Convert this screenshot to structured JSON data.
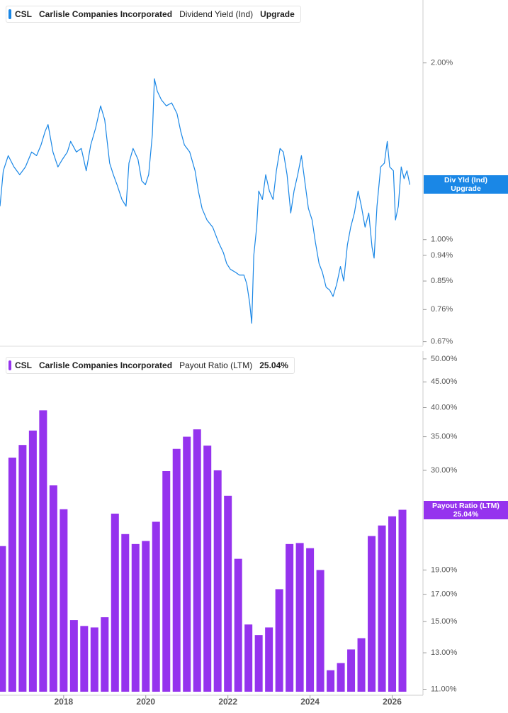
{
  "chart_data": [
    {
      "type": "line",
      "ticker": "CSL",
      "company": "Carlisle Companies Incorporated",
      "value_text": "Upgrade",
      "tag_name": "Div Yld (Ind)",
      "log_scale": true,
      "xlim": [
        2016.45,
        2026.75
      ],
      "ylim": [
        0.66,
        2.56
      ],
      "yticks": [
        {
          "value": 2,
          "label": "2.00%"
        },
        {
          "value": 1,
          "label": "1.00%"
        },
        {
          "value": 0.94,
          "label": "0.94%"
        },
        {
          "value": 0.85,
          "label": "0.85%"
        },
        {
          "value": 0.76,
          "label": "0.76%"
        },
        {
          "value": 0.67,
          "label": "0.67%"
        }
      ],
      "series": [
        {
          "name": "Dividend Yield (Ind)",
          "color": "#1a87e6",
          "x": [
            2016.45,
            2016.53,
            2016.65,
            2016.79,
            2016.93,
            2017.07,
            2017.22,
            2017.34,
            2017.45,
            2017.55,
            2017.62,
            2017.74,
            2017.86,
            2017.97,
            2018.09,
            2018.17,
            2018.31,
            2018.43,
            2018.55,
            2018.66,
            2018.78,
            2018.9,
            2019.0,
            2019.12,
            2019.21,
            2019.3,
            2019.42,
            2019.52,
            2019.59,
            2019.69,
            2019.81,
            2019.9,
            2019.99,
            2020.07,
            2020.16,
            2020.21,
            2020.28,
            2020.38,
            2020.5,
            2020.63,
            2020.76,
            2020.85,
            2020.94,
            2021.07,
            2021.2,
            2021.28,
            2021.37,
            2021.49,
            2021.63,
            2021.77,
            2021.89,
            2021.97,
            2022.06,
            2022.18,
            2022.28,
            2022.39,
            2022.46,
            2022.53,
            2022.58,
            2022.63,
            2022.7,
            2022.75,
            2022.84,
            2022.92,
            2023.01,
            2023.1,
            2023.18,
            2023.27,
            2023.35,
            2023.44,
            2023.53,
            2023.61,
            2023.7,
            2023.79,
            2023.87,
            2023.96,
            2024.05,
            2024.13,
            2024.22,
            2024.3,
            2024.39,
            2024.48,
            2024.56,
            2024.65,
            2024.74,
            2024.82,
            2024.91,
            2024.99,
            2025.08,
            2025.17,
            2025.25,
            2025.34,
            2025.43,
            2025.51,
            2025.56,
            2025.63,
            2025.72,
            2025.81,
            2025.88,
            2025.94,
            2026.03,
            2026.08,
            2026.15,
            2026.22,
            2026.29,
            2026.36,
            2026.43
          ],
          "values": [
            1.14,
            1.31,
            1.39,
            1.33,
            1.29,
            1.33,
            1.41,
            1.39,
            1.45,
            1.53,
            1.57,
            1.41,
            1.33,
            1.37,
            1.41,
            1.47,
            1.41,
            1.43,
            1.31,
            1.45,
            1.55,
            1.69,
            1.6,
            1.35,
            1.29,
            1.24,
            1.17,
            1.14,
            1.35,
            1.43,
            1.37,
            1.26,
            1.24,
            1.29,
            1.51,
            1.88,
            1.79,
            1.73,
            1.69,
            1.71,
            1.64,
            1.53,
            1.45,
            1.41,
            1.31,
            1.21,
            1.13,
            1.08,
            1.05,
            0.99,
            0.95,
            0.91,
            0.89,
            0.88,
            0.87,
            0.87,
            0.84,
            0.78,
            0.72,
            0.94,
            1.05,
            1.21,
            1.17,
            1.29,
            1.21,
            1.17,
            1.31,
            1.43,
            1.41,
            1.29,
            1.11,
            1.21,
            1.29,
            1.39,
            1.26,
            1.13,
            1.08,
            0.99,
            0.91,
            0.88,
            0.83,
            0.82,
            0.8,
            0.84,
            0.9,
            0.85,
            0.98,
            1.05,
            1.11,
            1.21,
            1.14,
            1.05,
            1.11,
            0.97,
            0.93,
            1.14,
            1.33,
            1.35,
            1.47,
            1.33,
            1.31,
            1.08,
            1.14,
            1.33,
            1.27,
            1.31,
            1.24
          ]
        }
      ]
    },
    {
      "type": "bar",
      "ticker": "CSL",
      "company": "Carlisle Companies Incorporated",
      "value_text": "25.04%",
      "tag_name": "Payout Ratio (LTM)",
      "log_scale": true,
      "xlim": [
        2016.45,
        2026.75
      ],
      "ylim": [
        10.7,
        51.8
      ],
      "bar_width": 0.19,
      "xticks": [
        2018,
        2020,
        2022,
        2024,
        2026
      ],
      "yticks": [
        {
          "value": 50,
          "label": "50.00%"
        },
        {
          "value": 45,
          "label": "45.00%"
        },
        {
          "value": 40,
          "label": "40.00%"
        },
        {
          "value": 35,
          "label": "35.00%"
        },
        {
          "value": 30,
          "label": "30.00%"
        },
        {
          "value": 19,
          "label": "19.00%"
        },
        {
          "value": 17,
          "label": "17.00%"
        },
        {
          "value": 15,
          "label": "15.00%"
        },
        {
          "value": 13,
          "label": "13.00%"
        },
        {
          "value": 11,
          "label": "11.00%"
        }
      ],
      "series": [
        {
          "name": "Payout Ratio (LTM)",
          "color": "#9533ee",
          "x": [
            2016.5,
            2016.75,
            2017,
            2017.25,
            2017.5,
            2017.75,
            2018,
            2018.25,
            2018.5,
            2018.75,
            2019,
            2019.25,
            2019.5,
            2019.75,
            2020,
            2020.25,
            2020.5,
            2020.75,
            2021,
            2021.25,
            2021.5,
            2021.75,
            2022,
            2022.25,
            2022.5,
            2022.75,
            2023,
            2023.25,
            2023.5,
            2023.75,
            2024,
            2024.25,
            2024.5,
            2024.75,
            2025,
            2025.25,
            2025.5,
            2025.75,
            2026,
            2026.25
          ],
          "values": [
            21.2,
            31.8,
            33.7,
            36.0,
            39.5,
            28.0,
            25.1,
            15.1,
            14.7,
            14.6,
            15.3,
            24.6,
            22.4,
            21.4,
            21.7,
            23.7,
            29.9,
            33.1,
            35.0,
            36.2,
            33.6,
            30.0,
            26.7,
            20.0,
            14.8,
            14.1,
            14.6,
            17.4,
            21.4,
            21.5,
            21.0,
            19.0,
            12.0,
            12.4,
            13.2,
            13.9,
            22.2,
            23.3,
            24.3,
            25.04
          ]
        }
      ]
    }
  ]
}
